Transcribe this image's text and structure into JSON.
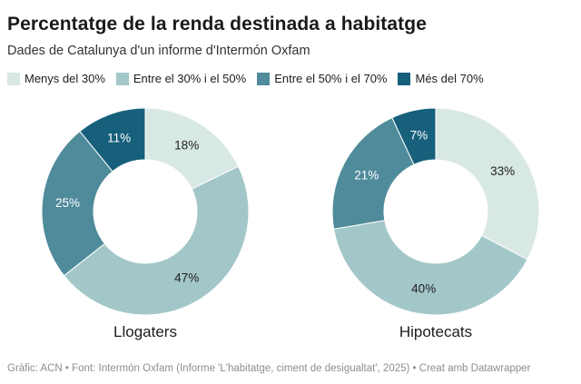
{
  "header": {
    "title": "Percentatge de la renda destinada a habitatge",
    "subtitle": "Dades de Catalunya d'un informe d'Intermón Oxfam"
  },
  "legend": {
    "items": [
      {
        "label": "Menys del 30%",
        "color": "#d8e8e4"
      },
      {
        "label": "Entre el 30% i el 50%",
        "color": "#a3c7c8"
      },
      {
        "label": "Entre el 50% i el 70%",
        "color": "#4f8b9b"
      },
      {
        "label": "Més del 70%",
        "color": "#17607b"
      }
    ]
  },
  "chart_data": [
    {
      "type": "pie",
      "variant": "donut",
      "title": "Llogaters",
      "unit": "%",
      "categories": [
        "Menys del 30%",
        "Entre el 30% i el 50%",
        "Entre el 50% i el 70%",
        "Més del 70%"
      ],
      "values": [
        18,
        47,
        25,
        11
      ],
      "colors": [
        "#d8e8e4",
        "#a3c7c8",
        "#4f8b9b",
        "#17607b"
      ],
      "value_label_colors": [
        "#1d1d1d",
        "#1d1d1d",
        "#ffffff",
        "#ffffff"
      ],
      "start_angle_deg": 0,
      "direction": "clockwise",
      "inner_radius_ratio": 0.5
    },
    {
      "type": "pie",
      "variant": "donut",
      "title": "Hipotecats",
      "unit": "%",
      "categories": [
        "Menys del 30%",
        "Entre el 30% i el 50%",
        "Entre el 50% i el 70%",
        "Més del 70%"
      ],
      "values": [
        33,
        40,
        21,
        7
      ],
      "colors": [
        "#d8e8e4",
        "#a3c7c8",
        "#4f8b9b",
        "#17607b"
      ],
      "value_label_colors": [
        "#1d1d1d",
        "#1d1d1d",
        "#ffffff",
        "#ffffff"
      ],
      "start_angle_deg": 0,
      "direction": "clockwise",
      "inner_radius_ratio": 0.5
    }
  ],
  "footer": {
    "text": "Gràfic: ACN • Font: Intermón Oxfam (Informe 'L'habitatge, ciment de desigualtat', 2025) • Creat amb Datawrapper"
  }
}
